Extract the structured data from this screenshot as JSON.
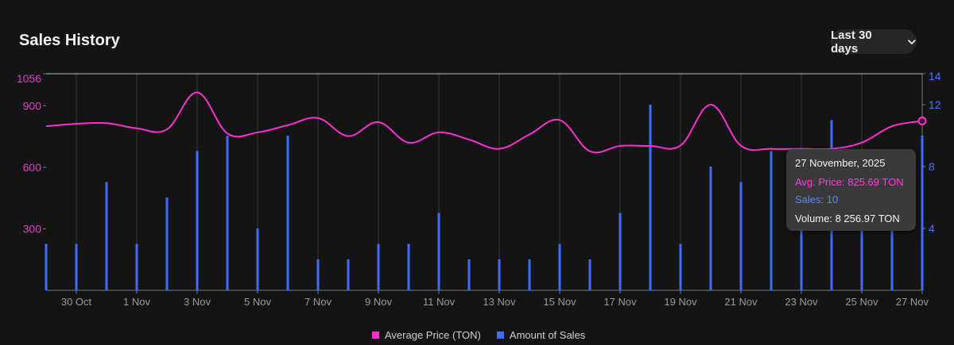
{
  "header": {
    "title": "Sales History",
    "range_label": "Last 30 days"
  },
  "tooltip": {
    "date": "27 November, 2025",
    "avg_price": "Avg. Price: 825.69 TON",
    "sales": "Sales: 10",
    "volume": "Volume: 8 256.97 TON"
  },
  "legend": {
    "price": "Average Price (TON)",
    "sales": "Amount of Sales"
  },
  "colors": {
    "price": "#ff2fd2",
    "sales": "#3f6bff",
    "grid": "#3a3a3a",
    "axis": "#7a7a7a"
  },
  "chart_data": {
    "type": "bar+line",
    "x": [
      "29 Oct",
      "30 Oct",
      "31 Oct",
      "1 Nov",
      "2 Nov",
      "3 Nov",
      "4 Nov",
      "5 Nov",
      "6 Nov",
      "7 Nov",
      "8 Nov",
      "9 Nov",
      "10 Nov",
      "11 Nov",
      "12 Nov",
      "13 Nov",
      "14 Nov",
      "15 Nov",
      "16 Nov",
      "17 Nov",
      "18 Nov",
      "19 Nov",
      "20 Nov",
      "21 Nov",
      "22 Nov",
      "23 Nov",
      "24 Nov",
      "25 Nov",
      "26 Nov",
      "27 Nov"
    ],
    "x_tick_labels": [
      "30 Oct",
      "1 Nov",
      "3 Nov",
      "5 Nov",
      "7 Nov",
      "9 Nov",
      "11 Nov",
      "13 Nov",
      "15 Nov",
      "17 Nov",
      "19 Nov",
      "21 Nov",
      "23 Nov",
      "25 Nov",
      "27 Nov"
    ],
    "series": [
      {
        "name": "Average Price (TON)",
        "axis": "left",
        "values": [
          800,
          812,
          815,
          790,
          785,
          965,
          765,
          770,
          805,
          840,
          752,
          820,
          720,
          770,
          735,
          690,
          760,
          830,
          678,
          704,
          704,
          706,
          905,
          705,
          690,
          690,
          690,
          720,
          800,
          825.69
        ]
      },
      {
        "name": "Amount of Sales",
        "axis": "right",
        "values": [
          3,
          3,
          7,
          3,
          6,
          9,
          10,
          4,
          10,
          2,
          2,
          3,
          3,
          5,
          2,
          2,
          2,
          3,
          2,
          5,
          12,
          3,
          8,
          7,
          9,
          4,
          11,
          4,
          4,
          10
        ]
      }
    ],
    "y_left": {
      "ticks": [
        300,
        600,
        900,
        1056
      ],
      "ylim": [
        0,
        1056
      ]
    },
    "y_right": {
      "ticks": [
        4,
        8,
        12,
        14
      ],
      "ylim": [
        0,
        14
      ]
    },
    "legend_position": "bottom"
  }
}
